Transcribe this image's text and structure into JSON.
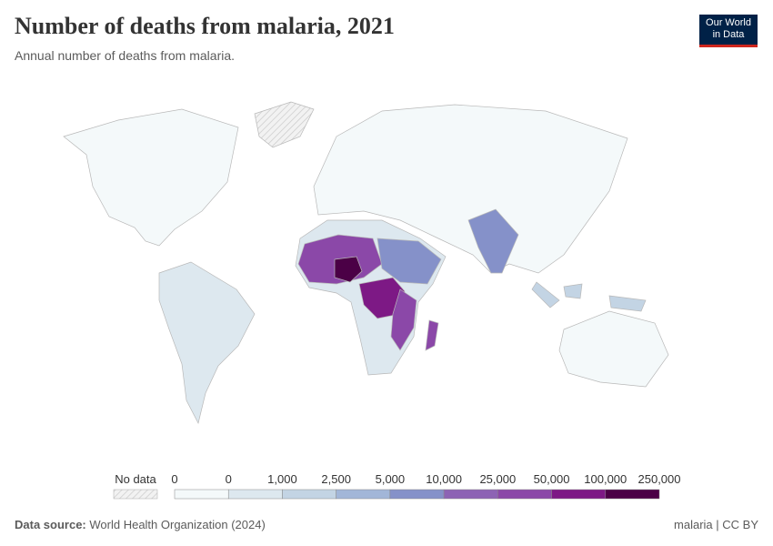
{
  "header": {
    "title": "Number of deaths from malaria, 2021",
    "subtitle": "Annual number of deaths from malaria.",
    "logo": [
      "Our World",
      "in Data"
    ]
  },
  "legend": {
    "no_data": "No data",
    "labels": [
      "0",
      "0",
      "1,000",
      "2,500",
      "5,000",
      "10,000",
      "25,000",
      "50,000",
      "100,000",
      "250,000"
    ],
    "colors": [
      "#f4f9fa",
      "#dde8ef",
      "#c3d4e4",
      "#a2b6d8",
      "#8591c9",
      "#8d63b4",
      "#8b48a8",
      "#7d1985",
      "#4b0046"
    ]
  },
  "footer": {
    "source_label": "Data source:",
    "source": "World Health Organization (2024)",
    "license": "malaria | CC BY"
  }
}
